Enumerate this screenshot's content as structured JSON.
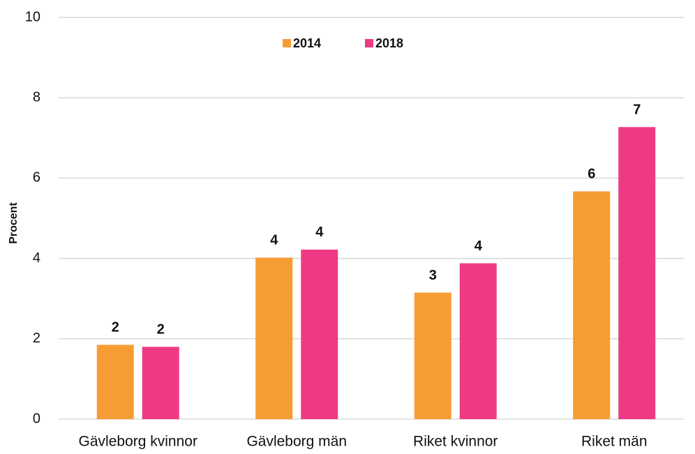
{
  "chart_data": {
    "type": "bar",
    "y_label": "Procent",
    "categories": [
      "Gävleborg kvinnor",
      "Gävleborg män",
      "Riket kvinnor",
      "Riket män"
    ],
    "series": [
      {
        "name": "2014",
        "color": "#f79c34",
        "values": [
          1.85,
          4.02,
          3.15,
          5.67
        ],
        "value_labels": [
          "2",
          "4",
          "3",
          "6"
        ]
      },
      {
        "name": "2018",
        "color": "#ee3a84",
        "values": [
          1.8,
          4.22,
          3.88,
          7.27
        ],
        "value_labels": [
          "2",
          "4",
          "4",
          "7"
        ]
      }
    ],
    "ylim": [
      0,
      10
    ],
    "yticks": [
      0,
      2,
      4,
      6,
      8,
      10
    ],
    "grid": true,
    "legend": "top"
  }
}
